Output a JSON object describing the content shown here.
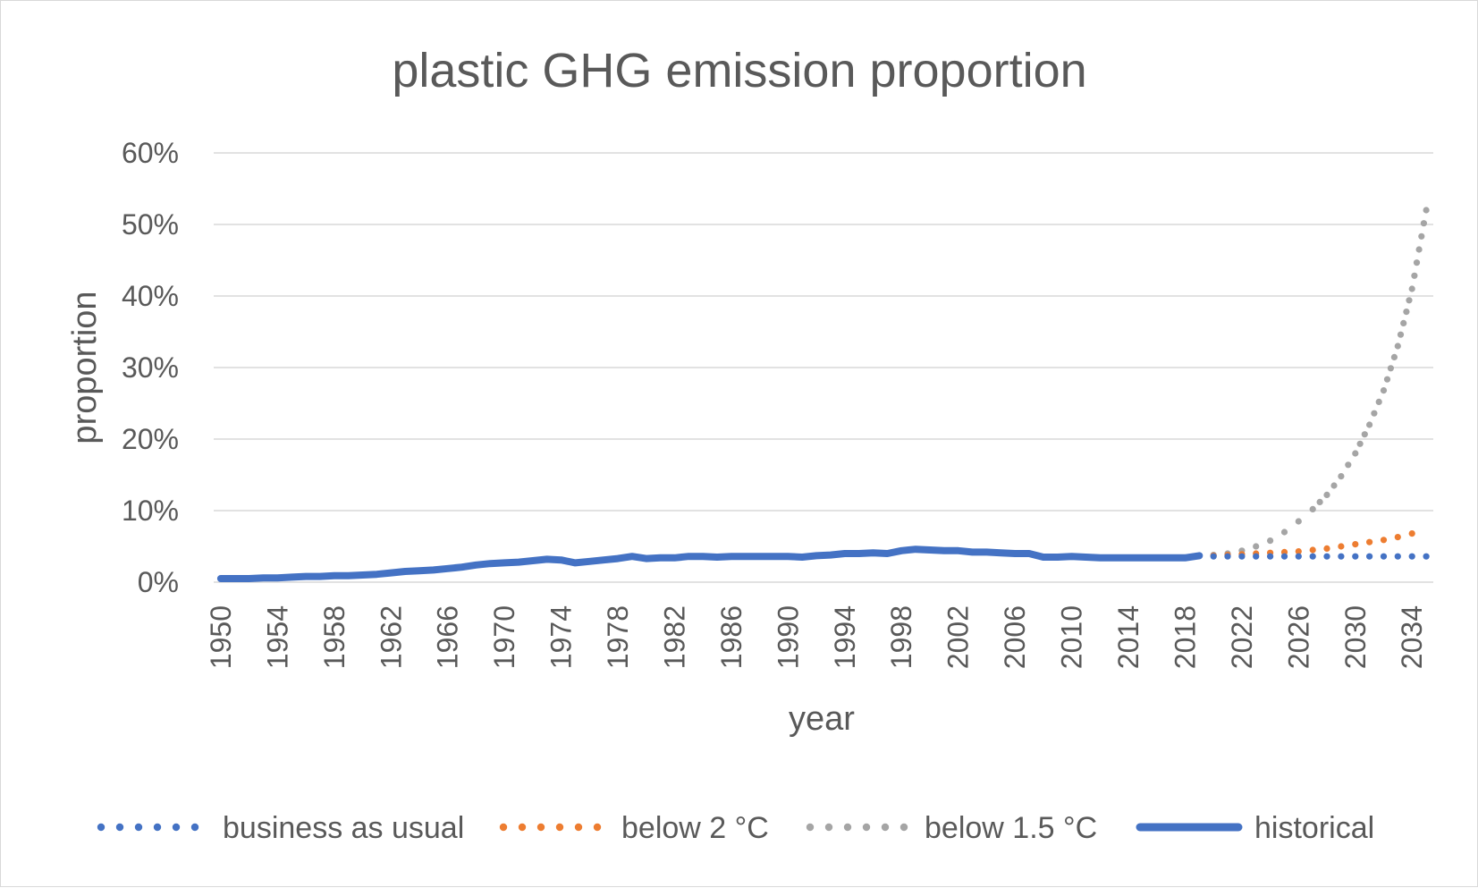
{
  "chart_data": {
    "type": "line",
    "title": "plastic GHG emission proportion",
    "xlabel": "year",
    "ylabel": "proportion",
    "ylim": [
      0,
      0.6
    ],
    "xlim": [
      1950,
      2035
    ],
    "y_ticks": [
      "0%",
      "10%",
      "20%",
      "30%",
      "40%",
      "50%",
      "60%"
    ],
    "x_tick_labels": [
      "1950",
      "1954",
      "1958",
      "1962",
      "1966",
      "1970",
      "1974",
      "1978",
      "1982",
      "1986",
      "1990",
      "1994",
      "1998",
      "2002",
      "2006",
      "2010",
      "2014",
      "2018",
      "2022",
      "2026",
      "2030",
      "2034"
    ],
    "grid": true,
    "legend_position": "bottom",
    "series": [
      {
        "name": "business as usual",
        "color": "#4472C4",
        "style": "dotted",
        "x": [
          2019,
          2020,
          2021,
          2022,
          2023,
          2024,
          2025,
          2026,
          2027,
          2028,
          2029,
          2030,
          2031,
          2032,
          2033,
          2034,
          2035
        ],
        "values": [
          0.037,
          0.036,
          0.036,
          0.036,
          0.036,
          0.036,
          0.036,
          0.036,
          0.036,
          0.036,
          0.036,
          0.036,
          0.036,
          0.036,
          0.036,
          0.036,
          0.036
        ]
      },
      {
        "name": "below 2 °C",
        "color": "#ED7D31",
        "style": "dotted",
        "x": [
          2019,
          2020,
          2021,
          2022,
          2023,
          2024,
          2025,
          2026,
          2027,
          2028,
          2029,
          2030,
          2031,
          2032,
          2033,
          2034
        ],
        "values": [
          0.037,
          0.037,
          0.038,
          0.039,
          0.04,
          0.041,
          0.042,
          0.043,
          0.045,
          0.047,
          0.05,
          0.053,
          0.056,
          0.059,
          0.063,
          0.068
        ]
      },
      {
        "name": "below 1.5 °C",
        "color": "#A5A5A5",
        "style": "dotted",
        "x": [
          2019,
          2020,
          2021,
          2022,
          2023,
          2024,
          2025,
          2026,
          2027,
          2028,
          2029,
          2030,
          2031,
          2032,
          2033,
          2034,
          2035
        ],
        "values": [
          0.037,
          0.038,
          0.04,
          0.044,
          0.05,
          0.058,
          0.07,
          0.085,
          0.102,
          0.122,
          0.148,
          0.18,
          0.22,
          0.268,
          0.33,
          0.41,
          0.52
        ]
      },
      {
        "name": "historical",
        "color": "#4472C4",
        "style": "solid",
        "x": [
          1950,
          1951,
          1952,
          1953,
          1954,
          1955,
          1956,
          1957,
          1958,
          1959,
          1960,
          1961,
          1962,
          1963,
          1964,
          1965,
          1966,
          1967,
          1968,
          1969,
          1970,
          1971,
          1972,
          1973,
          1974,
          1975,
          1976,
          1977,
          1978,
          1979,
          1980,
          1981,
          1982,
          1983,
          1984,
          1985,
          1986,
          1987,
          1988,
          1989,
          1990,
          1991,
          1992,
          1993,
          1994,
          1995,
          1996,
          1997,
          1998,
          1999,
          2000,
          2001,
          2002,
          2003,
          2004,
          2005,
          2006,
          2007,
          2008,
          2009,
          2010,
          2011,
          2012,
          2013,
          2014,
          2015,
          2016,
          2017,
          2018,
          2019
        ],
        "values": [
          0.005,
          0.005,
          0.005,
          0.006,
          0.006,
          0.007,
          0.008,
          0.008,
          0.009,
          0.009,
          0.01,
          0.011,
          0.013,
          0.015,
          0.016,
          0.017,
          0.019,
          0.021,
          0.024,
          0.026,
          0.027,
          0.028,
          0.03,
          0.032,
          0.031,
          0.027,
          0.029,
          0.031,
          0.033,
          0.036,
          0.033,
          0.034,
          0.034,
          0.036,
          0.036,
          0.035,
          0.036,
          0.036,
          0.036,
          0.036,
          0.036,
          0.035,
          0.037,
          0.038,
          0.04,
          0.04,
          0.041,
          0.04,
          0.044,
          0.046,
          0.045,
          0.044,
          0.044,
          0.042,
          0.042,
          0.041,
          0.04,
          0.04,
          0.035,
          0.035,
          0.036,
          0.035,
          0.034,
          0.034,
          0.034,
          0.034,
          0.034,
          0.034,
          0.034,
          0.037
        ]
      }
    ]
  }
}
